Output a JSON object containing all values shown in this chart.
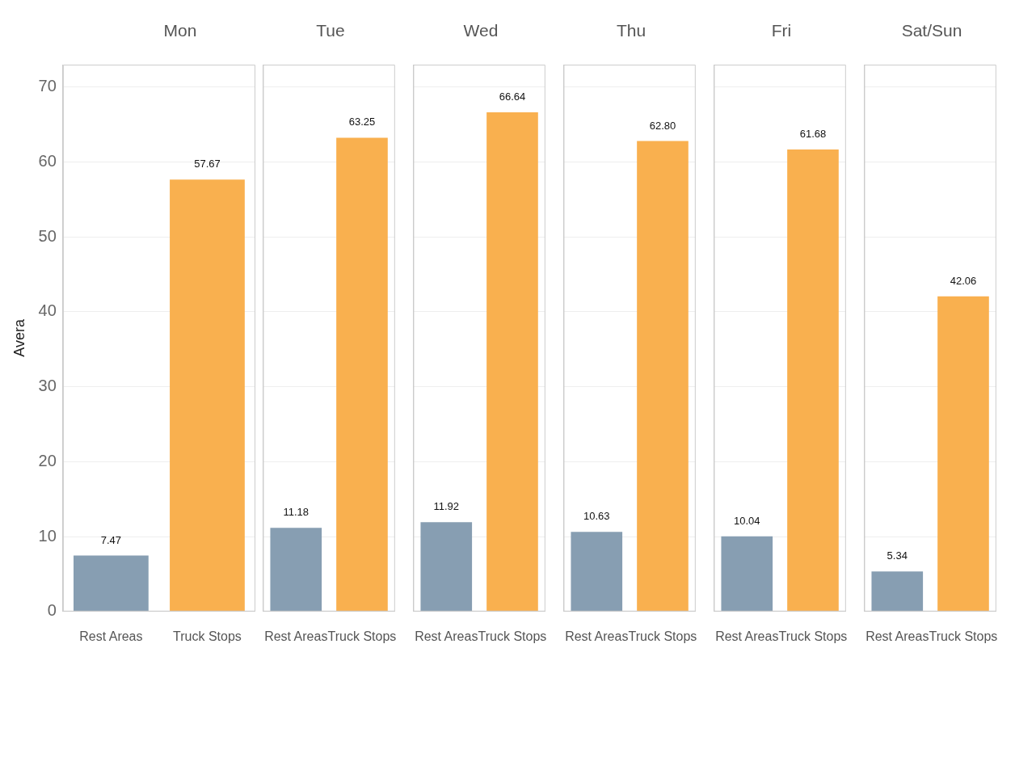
{
  "chart_data": [
    {
      "type": "bar",
      "title": "Mon",
      "ylabel": "Avera",
      "categories": [
        "Rest Areas",
        "Truck Stops"
      ],
      "values": [
        7.47,
        57.67
      ],
      "colors": [
        "#879eb2",
        "#f9b04f"
      ],
      "value_labels": [
        "7.47",
        "57.67"
      ],
      "ylim": [
        0,
        73
      ],
      "yticks": [
        0,
        10,
        20,
        30,
        40,
        50,
        60,
        70
      ],
      "grid": "y"
    },
    {
      "type": "bar",
      "title": "Tue",
      "categories": [
        "Rest Areas",
        "Truck Stops"
      ],
      "values": [
        11.18,
        63.25
      ],
      "colors": [
        "#879eb2",
        "#f9b04f"
      ],
      "value_labels": [
        "11.18",
        "63.25"
      ],
      "ylim": [
        0,
        73
      ],
      "yticks": [
        0,
        10,
        20,
        30,
        40,
        50,
        60,
        70
      ],
      "grid": "y",
      "tick_labels": "x"
    },
    {
      "type": "bar",
      "title": "Wed",
      "categories": [
        "Rest Areas",
        "Truck Stops"
      ],
      "values": [
        11.92,
        66.64
      ],
      "colors": [
        "#879eb2",
        "#f9b04f"
      ],
      "value_labels": [
        "11.92",
        "66.64"
      ],
      "ylim": [
        0,
        73
      ],
      "yticks": [
        0,
        10,
        20,
        30,
        40,
        50,
        60,
        70
      ],
      "grid": "y",
      "tick_labels": "x"
    },
    {
      "type": "bar",
      "title": "Thu",
      "categories": [
        "Rest Areas",
        "Truck Stops"
      ],
      "values": [
        10.63,
        62.8
      ],
      "colors": [
        "#879eb2",
        "#f9b04f"
      ],
      "value_labels": [
        "10.63",
        "62.80"
      ],
      "ylim": [
        0,
        73
      ],
      "yticks": [
        0,
        10,
        20,
        30,
        40,
        50,
        60,
        70
      ],
      "grid": "y",
      "tick_labels": "x"
    },
    {
      "type": "bar",
      "title": "Fri",
      "categories": [
        "Rest Areas",
        "Truck Stops"
      ],
      "values": [
        10.04,
        61.68
      ],
      "colors": [
        "#879eb2",
        "#f9b04f"
      ],
      "value_labels": [
        "10.04",
        "61.68"
      ],
      "ylim": [
        0,
        73
      ],
      "yticks": [
        0,
        10,
        20,
        30,
        40,
        50,
        60,
        70
      ],
      "grid": "y",
      "tick_labels": "x"
    },
    {
      "type": "bar",
      "title": "Sat/Sun",
      "categories": [
        "Rest Areas",
        "Truck Stops"
      ],
      "values": [
        5.34,
        42.06
      ],
      "colors": [
        "#879eb2",
        "#f9b04f"
      ],
      "value_labels": [
        "5.34",
        "42.06"
      ],
      "ylim": [
        0,
        73
      ],
      "yticks": [
        0,
        10,
        20,
        30,
        40,
        50,
        60,
        70
      ],
      "grid": "y",
      "tick_labels": "x"
    }
  ]
}
